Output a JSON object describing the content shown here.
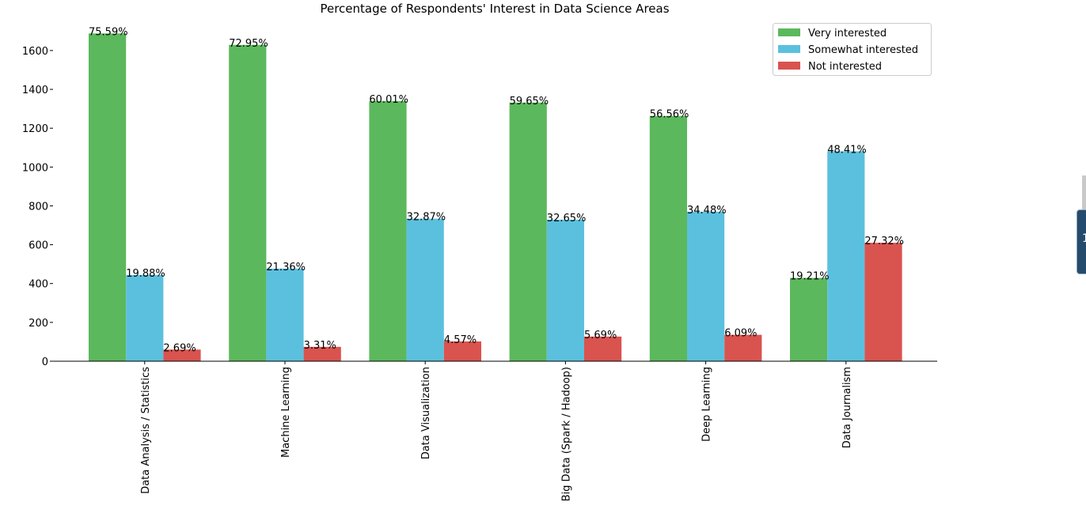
{
  "chart_data": {
    "type": "bar",
    "title": "Percentage of Respondents' Interest in Data Science Areas",
    "xlabel": "",
    "ylabel": "",
    "ylim": [
      0,
      1720
    ],
    "yticks": [
      0,
      200,
      400,
      600,
      800,
      1000,
      1200,
      1400,
      1600
    ],
    "ytick_labels": [
      "0",
      "200",
      "400",
      "600",
      "800",
      "1000",
      "1200",
      "1400",
      "1600"
    ],
    "categories": [
      "Data Analysis / Statistics",
      "Machine Learning",
      "Data Visualization",
      "Big Data (Spark / Hadoop)",
      "Deep Learning",
      "Data Journalism"
    ],
    "series": [
      {
        "name": "Very interested",
        "color": "#5cb85c",
        "values": [
          1688,
          1629,
          1340,
          1332,
          1263,
          429
        ],
        "labels": [
          "75.59%",
          "72.95%",
          "60.01%",
          "59.65%",
          "56.56%",
          "19.21%"
        ]
      },
      {
        "name": "Somewhat interested",
        "color": "#5bc0de",
        "values": [
          444,
          477,
          734,
          729,
          770,
          1081
        ],
        "labels": [
          "19.88%",
          "21.36%",
          "32.87%",
          "32.65%",
          "34.48%",
          "48.41%"
        ]
      },
      {
        "name": "Not interested",
        "color": "#d9534f",
        "values": [
          60,
          74,
          102,
          127,
          136,
          610
        ],
        "labels": [
          "2.69%",
          "3.31%",
          "4.57%",
          "5.69%",
          "6.09%",
          "27.32%"
        ]
      }
    ],
    "legend_position": "top-right",
    "grid": false
  },
  "widget": {
    "glyph": "1"
  }
}
